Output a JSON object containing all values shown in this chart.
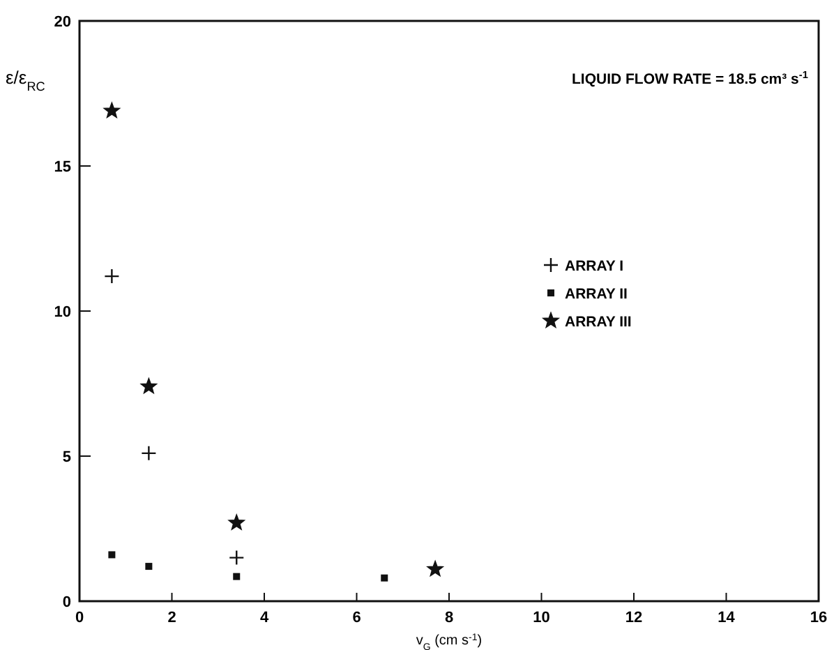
{
  "chart_data": {
    "type": "scatter",
    "xlabel": "v$_{G}$ (cm s$^{-1}$)",
    "ylabel": "ε/ε$_{RC}$",
    "annotations": [
      "LIQUID FLOW RATE = 18.5 cm³ s$^{-1}$"
    ],
    "xlim": [
      0,
      16
    ],
    "xticks": [
      0,
      2,
      4,
      6,
      8,
      10,
      12,
      14,
      16
    ],
    "ylim": [
      0,
      20
    ],
    "yticks": [
      0,
      5,
      10,
      15,
      20
    ],
    "grid": false,
    "legend": "right",
    "series": [
      {
        "name": "ARRAY I",
        "color": "#111111",
        "marker": "cross",
        "x": [
          0.7,
          1.5,
          3.4
        ],
        "values": [
          11.2,
          5.1,
          1.5
        ]
      },
      {
        "name": "ARRAY II",
        "color": "#111111",
        "marker": "square",
        "x": [
          0.7,
          1.5,
          3.4,
          6.6
        ],
        "values": [
          1.6,
          1.2,
          0.85,
          0.8
        ]
      },
      {
        "name": "ARRAY III",
        "color": "#111111",
        "marker": "star",
        "x": [
          0.7,
          1.5,
          3.4,
          7.7
        ],
        "values": [
          16.9,
          7.4,
          2.7,
          1.1
        ]
      }
    ]
  }
}
